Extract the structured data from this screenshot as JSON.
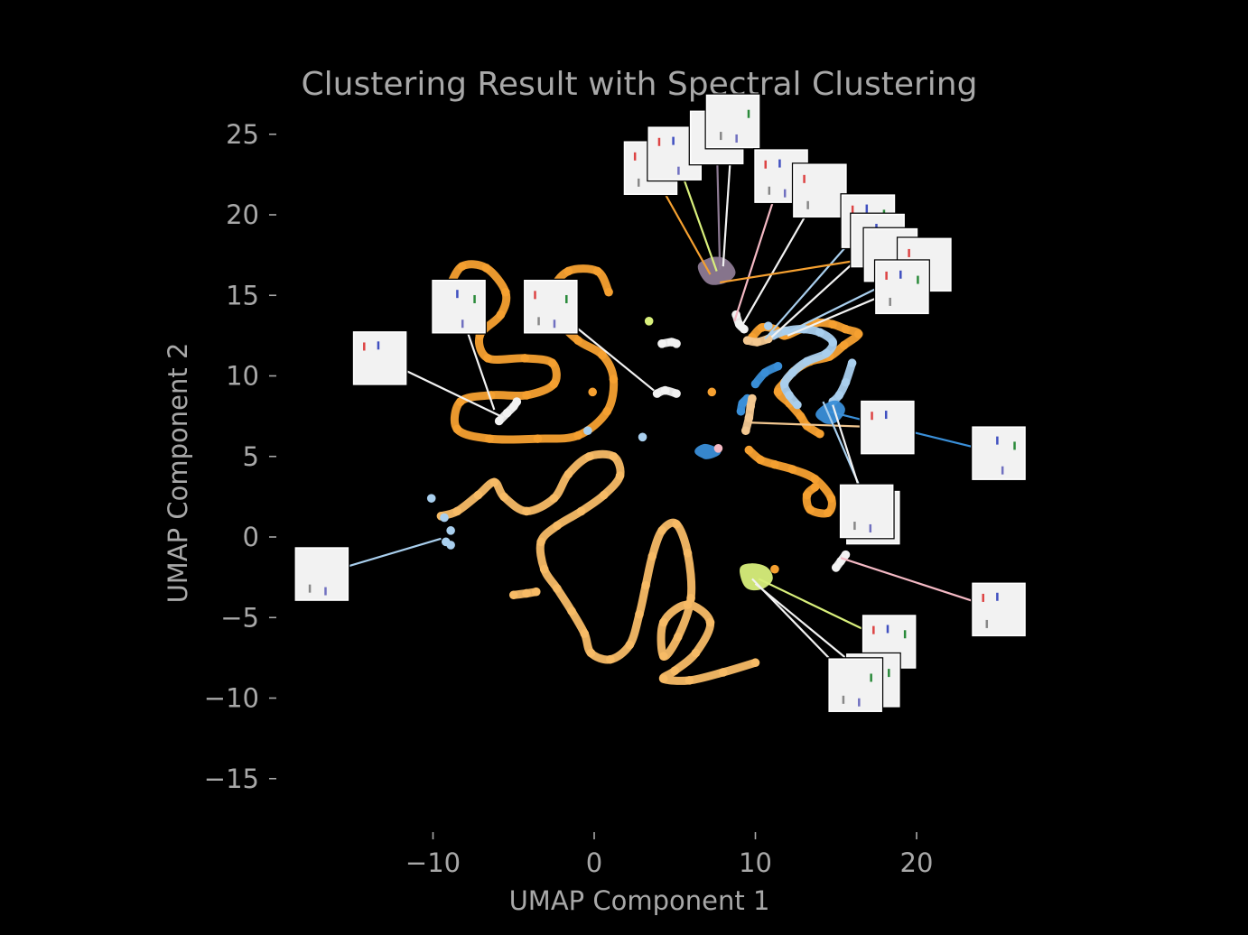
{
  "chart_data": {
    "type": "scatter",
    "title": "Clustering Result with Spectral Clustering",
    "xlabel": "UMAP Component 1",
    "ylabel": "UMAP Component 2",
    "xlim": [
      -18,
      30
    ],
    "ylim": [
      -18.5,
      27
    ],
    "xticks": [
      -10,
      0,
      10,
      20
    ],
    "yticks": [
      25,
      20,
      15,
      10,
      5,
      0,
      -5,
      -10,
      -15
    ],
    "xtick_labels": [
      "−10",
      "0",
      "10",
      "20"
    ],
    "ytick_labels": [
      "25",
      "20",
      "15",
      "10",
      "5",
      "0",
      "−5",
      "−10",
      "−15"
    ],
    "grid": false,
    "background": "#000000",
    "colors": {
      "orange": "#f5a030",
      "light_orange": "#f7bb66",
      "blue": "#3a8fd8",
      "light_blue": "#a9cfee",
      "white": "#f2f2f2",
      "purple": "#8e7b94",
      "lime": "#d9f07c",
      "pink": "#f4b9c4",
      "peach": "#f3c891"
    },
    "series": [
      {
        "color": "orange",
        "kind": "curve",
        "points": [
          [
            -9,
            15.5
          ],
          [
            -8.2,
            16.8
          ],
          [
            -6.7,
            16.7
          ],
          [
            -5.5,
            15.2
          ],
          [
            -5.8,
            13.8
          ],
          [
            -7.1,
            12.5
          ],
          [
            -6.6,
            11.1
          ],
          [
            -4.3,
            11.1
          ],
          [
            -2.6,
            10.8
          ],
          [
            -2.5,
            9.5
          ],
          [
            -4.2,
            8.8
          ],
          [
            -6.4,
            8.8
          ],
          [
            -8.3,
            8.4
          ],
          [
            -8.5,
            6.7
          ],
          [
            -6.5,
            6.1
          ],
          [
            -3.5,
            6.1
          ],
          [
            -1,
            6.3
          ],
          [
            0.8,
            7.8
          ],
          [
            1.2,
            9.8
          ],
          [
            0.5,
            11.3
          ],
          [
            -1,
            12.2
          ],
          [
            -2.2,
            13.5
          ],
          [
            -2.6,
            15.2
          ],
          [
            -1.6,
            16.5
          ],
          [
            0.2,
            16.5
          ],
          [
            0.9,
            15.2
          ]
        ]
      },
      {
        "color": "light_orange",
        "kind": "curve",
        "points": [
          [
            -9.5,
            1.3
          ],
          [
            -8.5,
            1.6
          ],
          [
            -7.2,
            2.6
          ],
          [
            -6.2,
            3.4
          ],
          [
            -5.6,
            2.5
          ],
          [
            -4.2,
            1.6
          ],
          [
            -2.5,
            2.4
          ],
          [
            -1.6,
            3.9
          ],
          [
            -0.3,
            5
          ],
          [
            1.2,
            5
          ],
          [
            1.6,
            3.8
          ],
          [
            0.6,
            2.6
          ],
          [
            -0.8,
            1.6
          ],
          [
            -2.3,
            0.7
          ],
          [
            -3.3,
            -0.3
          ],
          [
            -3.1,
            -2
          ],
          [
            -2.3,
            -3.2
          ],
          [
            -1.4,
            -4.6
          ],
          [
            -0.6,
            -6
          ],
          [
            -0.2,
            -7.2
          ],
          [
            1,
            -7.6
          ],
          [
            2.2,
            -6.7
          ],
          [
            2.8,
            -4.8
          ],
          [
            3.2,
            -3
          ],
          [
            3.6,
            -1.2
          ],
          [
            4.2,
            0.4
          ],
          [
            5.1,
            0.8
          ],
          [
            5.8,
            -1
          ],
          [
            6,
            -3.8
          ],
          [
            5.2,
            -6.2
          ],
          [
            4.3,
            -7.4
          ],
          [
            4.3,
            -5.3
          ],
          [
            5.8,
            -4.2
          ],
          [
            7.2,
            -5.3
          ],
          [
            6.3,
            -7.2
          ],
          [
            5,
            -8.3
          ],
          [
            4.3,
            -8.8
          ],
          [
            5.9,
            -8.9
          ],
          [
            8,
            -8.4
          ],
          [
            10,
            -7.8
          ]
        ]
      },
      {
        "color": "light_orange",
        "kind": "curve",
        "points": [
          [
            -5,
            -3.6
          ],
          [
            -4.2,
            -3.5
          ],
          [
            -3.6,
            -3.4
          ]
        ]
      },
      {
        "color": "orange",
        "kind": "curve",
        "points": [
          [
            9.6,
            5.4
          ],
          [
            10.3,
            4.8
          ],
          [
            11.2,
            4.5
          ],
          [
            12.3,
            4.2
          ],
          [
            13.7,
            3.6
          ],
          [
            14.7,
            2.4
          ],
          [
            14.5,
            1.5
          ],
          [
            13.4,
            1.7
          ],
          [
            13.2,
            2.6
          ],
          [
            13.7,
            3.1
          ]
        ]
      },
      {
        "color": "orange",
        "kind": "curve",
        "points": [
          [
            9.8,
            12.4
          ],
          [
            10.4,
            13
          ],
          [
            11.2,
            12.9
          ],
          [
            11.8,
            12.5
          ],
          [
            12.8,
            12.9
          ],
          [
            13.8,
            13.3
          ],
          [
            14.8,
            13.2
          ],
          [
            15.6,
            12.9
          ],
          [
            16.4,
            12.6
          ],
          [
            15.5,
            11.9
          ],
          [
            14.6,
            11.2
          ],
          [
            13.4,
            10.9
          ],
          [
            12.4,
            10.3
          ],
          [
            11.8,
            9.6
          ],
          [
            11.4,
            9
          ],
          [
            12.1,
            8.3
          ],
          [
            12.8,
            7.5
          ],
          [
            13.2,
            6.9
          ],
          [
            14,
            6.4
          ]
        ]
      },
      {
        "color": "light_blue",
        "kind": "curve",
        "points": [
          [
            11.1,
            12.5
          ],
          [
            11.9,
            12.8
          ],
          [
            13,
            12.9
          ],
          [
            14,
            12.7
          ],
          [
            14.8,
            12.1
          ],
          [
            14.4,
            11.4
          ],
          [
            13.2,
            10.9
          ],
          [
            12.3,
            10.2
          ],
          [
            11.8,
            9.5
          ],
          [
            12.1,
            8.8
          ],
          [
            12.6,
            8.2
          ]
        ]
      },
      {
        "color": "light_blue",
        "kind": "curve",
        "points": [
          [
            14.8,
            8.4
          ],
          [
            15.2,
            8.8
          ],
          [
            15.6,
            9.6
          ],
          [
            16,
            10.8
          ]
        ]
      },
      {
        "color": "blue",
        "kind": "blob",
        "points": [
          [
            13.9,
            7.6
          ],
          [
            14.4,
            7.2
          ],
          [
            15,
            7.3
          ],
          [
            15.4,
            7.9
          ],
          [
            15,
            8.3
          ],
          [
            14.4,
            8.1
          ]
        ]
      },
      {
        "color": "blue",
        "kind": "blob",
        "points": [
          [
            6.4,
            5.3
          ],
          [
            6.9,
            5
          ],
          [
            7.4,
            5.1
          ],
          [
            7.7,
            5.3
          ],
          [
            7.3,
            5.5
          ],
          [
            6.8,
            5.6
          ]
        ]
      },
      {
        "color": "blue",
        "kind": "curve",
        "points": [
          [
            9.1,
            7.8
          ],
          [
            9.2,
            8.3
          ],
          [
            9.5,
            8.6
          ]
        ]
      },
      {
        "color": "blue",
        "kind": "curve",
        "points": [
          [
            10,
            9.5
          ],
          [
            10.6,
            10.2
          ],
          [
            11.4,
            10.6
          ]
        ]
      },
      {
        "color": "purple",
        "kind": "blob",
        "points": [
          [
            6.6,
            16.8
          ],
          [
            7.3,
            17.2
          ],
          [
            8.1,
            17.1
          ],
          [
            8.6,
            16.4
          ],
          [
            8,
            15.9
          ],
          [
            7.1,
            15.9
          ]
        ]
      },
      {
        "color": "white",
        "kind": "curve",
        "points": [
          [
            8.8,
            13.8
          ],
          [
            9,
            13.2
          ],
          [
            9.3,
            12.9
          ]
        ]
      },
      {
        "color": "peach",
        "kind": "curve",
        "points": [
          [
            9.5,
            12.2
          ],
          [
            10.1,
            12.1
          ],
          [
            10.8,
            12.3
          ]
        ]
      },
      {
        "color": "peach",
        "kind": "curve",
        "points": [
          [
            9.4,
            6.6
          ],
          [
            9.6,
            7.4
          ],
          [
            9.7,
            8.1
          ],
          [
            9.8,
            8.6
          ]
        ]
      },
      {
        "color": "white",
        "kind": "curve",
        "points": [
          [
            3.9,
            8.9
          ],
          [
            4.4,
            9.1
          ],
          [
            5.1,
            8.9
          ]
        ]
      },
      {
        "color": "white",
        "kind": "curve",
        "points": [
          [
            4.2,
            12
          ],
          [
            4.8,
            12.1
          ],
          [
            5.1,
            12
          ]
        ]
      },
      {
        "color": "white",
        "kind": "curve",
        "points": [
          [
            -5.9,
            7.2
          ],
          [
            -5.4,
            7.7
          ],
          [
            -5,
            8.1
          ],
          [
            -4.8,
            8.4
          ]
        ]
      },
      {
        "color": "white",
        "kind": "curve",
        "points": [
          [
            15,
            -1.9
          ],
          [
            15.3,
            -1.5
          ],
          [
            15.6,
            -1.1
          ]
        ]
      },
      {
        "color": "lime",
        "kind": "blob",
        "points": [
          [
            9.2,
            -2
          ],
          [
            9.8,
            -1.8
          ],
          [
            10.6,
            -2
          ],
          [
            10.9,
            -2.6
          ],
          [
            10.3,
            -3.1
          ],
          [
            9.5,
            -3
          ]
        ]
      },
      {
        "color": "light_blue",
        "kind": "points",
        "points": [
          [
            -10.1,
            2.4
          ],
          [
            -9.3,
            1.2
          ],
          [
            -8.9,
            0.4
          ],
          [
            -9.2,
            -0.3
          ],
          [
            -8.9,
            -0.5
          ],
          [
            3,
            6.2
          ],
          [
            -0.4,
            6.6
          ],
          [
            10.8,
            13.1
          ]
        ]
      },
      {
        "color": "orange",
        "kind": "points",
        "points": [
          [
            -0.1,
            9
          ],
          [
            11.2,
            -2
          ],
          [
            7.3,
            9
          ]
        ]
      },
      {
        "color": "lime",
        "kind": "points",
        "points": [
          [
            3.4,
            13.4
          ]
        ]
      },
      {
        "color": "pink",
        "kind": "points",
        "points": [
          [
            7.7,
            5.5
          ]
        ]
      }
    ],
    "thumbnails": [
      {
        "x": -13.3,
        "y": 11.1,
        "line_to": [
          -5.6,
          7.4
        ],
        "line_color": "white"
      },
      {
        "x": -8.4,
        "y": 14.3,
        "line_to": [
          -6.2,
          7.9
        ],
        "line_color": "white"
      },
      {
        "x": -2.7,
        "y": 14.3,
        "line_to": [
          3.7,
          9.1
        ],
        "line_color": "white"
      },
      {
        "x": -16.9,
        "y": -2.3,
        "line_to": [
          -9.5,
          -0.1
        ],
        "line_color": "light_blue"
      },
      {
        "x": 3.5,
        "y": 22.9,
        "line_to": [
          7.2,
          16.3
        ],
        "line_color": "orange"
      },
      {
        "x": 5.0,
        "y": 23.8,
        "line_to": [
          7.6,
          16.5
        ],
        "line_color": "lime"
      },
      {
        "x": 7.6,
        "y": 24.8,
        "line_to": [
          7.8,
          16.6
        ],
        "line_color": "purple"
      },
      {
        "x": 8.6,
        "y": 25.8,
        "line_to": [
          8.0,
          16.8
        ],
        "line_color": "white"
      },
      {
        "x": 11.6,
        "y": 22.4,
        "line_to": [
          8.7,
          13.4
        ],
        "line_color": "pink"
      },
      {
        "x": 14.0,
        "y": 21.5,
        "line_to": [
          9.1,
          13.0
        ],
        "line_color": "white"
      },
      {
        "x": 17.0,
        "y": 19.6,
        "line_to": [
          10.6,
          12.3
        ],
        "line_color": "light_blue"
      },
      {
        "x": 17.6,
        "y": 18.4,
        "line_to": [
          11.0,
          12.4
        ],
        "line_color": "white"
      },
      {
        "x": 18.4,
        "y": 17.5,
        "line_to": [
          7.8,
          15.8
        ],
        "line_color": "orange"
      },
      {
        "x": 20.5,
        "y": 16.9,
        "line_to": [
          11.6,
          12.5
        ],
        "line_color": "light_blue"
      },
      {
        "x": 19.1,
        "y": 15.5,
        "line_to": [
          12.0,
          12.5
        ],
        "line_color": "white"
      },
      {
        "x": 18.2,
        "y": 6.8,
        "line_to": [
          9.7,
          7.1
        ],
        "line_color": "peach"
      },
      {
        "x": 25.1,
        "y": 5.2,
        "line_to": [
          14.5,
          7.8
        ],
        "line_color": "blue"
      },
      {
        "x": 17.3,
        "y": 1.2,
        "line_to": [
          14.2,
          8.4
        ],
        "line_color": "light_blue"
      },
      {
        "x": 16.9,
        "y": 1.6,
        "line_to": [
          14.8,
          8.2
        ],
        "line_color": "white"
      },
      {
        "x": 25.1,
        "y": -4.5,
        "line_to": [
          15.3,
          -1.3
        ],
        "line_color": "pink"
      },
      {
        "x": 18.3,
        "y": -6.5,
        "line_to": [
          10.2,
          -2.6
        ],
        "line_color": "lime"
      },
      {
        "x": 17.3,
        "y": -8.9,
        "line_to": [
          10.0,
          -2.9
        ],
        "line_color": "white"
      },
      {
        "x": 16.2,
        "y": -9.2,
        "line_to": [
          9.8,
          -2.6
        ],
        "line_color": "white"
      }
    ]
  }
}
